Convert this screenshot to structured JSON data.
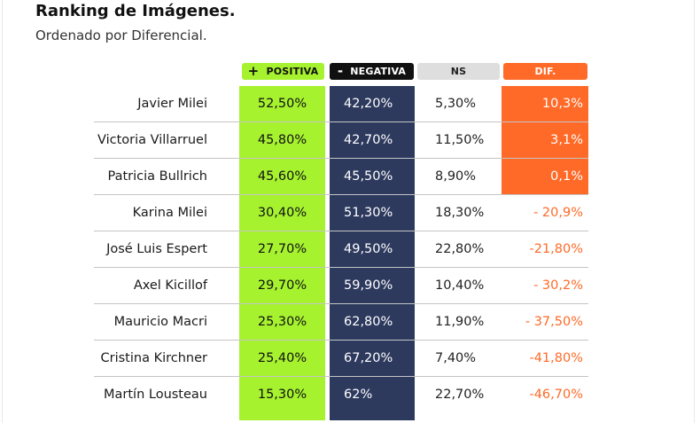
{
  "title": "Ranking de Imágenes.",
  "subtitle": "Ordenado por Diferencial.",
  "headers": {
    "positiva_symbol": "+",
    "positiva": "POSITIVA",
    "negativa_symbol": "-",
    "negativa": "NEGATIVA",
    "ns": "NS",
    "dif": "DIF."
  },
  "colors": {
    "positiva": "#a6f22f",
    "negativa": "#2d3a5e",
    "dif": "#ff6a28",
    "ns": "#dedede"
  },
  "rows": [
    {
      "name": "Javier Milei",
      "positiva": "52,50%",
      "negativa": "42,20%",
      "ns": "5,30%",
      "dif": "10,3%",
      "highlight": true
    },
    {
      "name": "Victoria Villarruel",
      "positiva": "45,80%",
      "negativa": "42,70%",
      "ns": "11,50%",
      "dif": "3,1%",
      "highlight": true
    },
    {
      "name": "Patricia Bullrich",
      "positiva": "45,60%",
      "negativa": "45,50%",
      "ns": "8,90%",
      "dif": "0,1%",
      "highlight": true
    },
    {
      "name": "Karina Milei",
      "positiva": "30,40%",
      "negativa": "51,30%",
      "ns": "18,30%",
      "dif": "- 20,9%",
      "highlight": false
    },
    {
      "name": "José Luis Espert",
      "positiva": "27,70%",
      "negativa": "49,50%",
      "ns": "22,80%",
      "dif": "-21,80%",
      "highlight": false
    },
    {
      "name": "Axel Kicillof",
      "positiva": "29,70%",
      "negativa": "59,90%",
      "ns": "10,40%",
      "dif": "- 30,2%",
      "highlight": false
    },
    {
      "name": "Mauricio Macri",
      "positiva": "25,30%",
      "negativa": "62,80%",
      "ns": "11,90%",
      "dif": "- 37,50%",
      "highlight": false
    },
    {
      "name": "Cristina Kirchner",
      "positiva": "25,40%",
      "negativa": "67,20%",
      "ns": "7,40%",
      "dif": "-41,80%",
      "highlight": false
    },
    {
      "name": "Martín Lousteau",
      "positiva": "15,30%",
      "negativa": "62%",
      "ns": "22,70%",
      "dif": "-46,70%",
      "highlight": false
    }
  ]
}
